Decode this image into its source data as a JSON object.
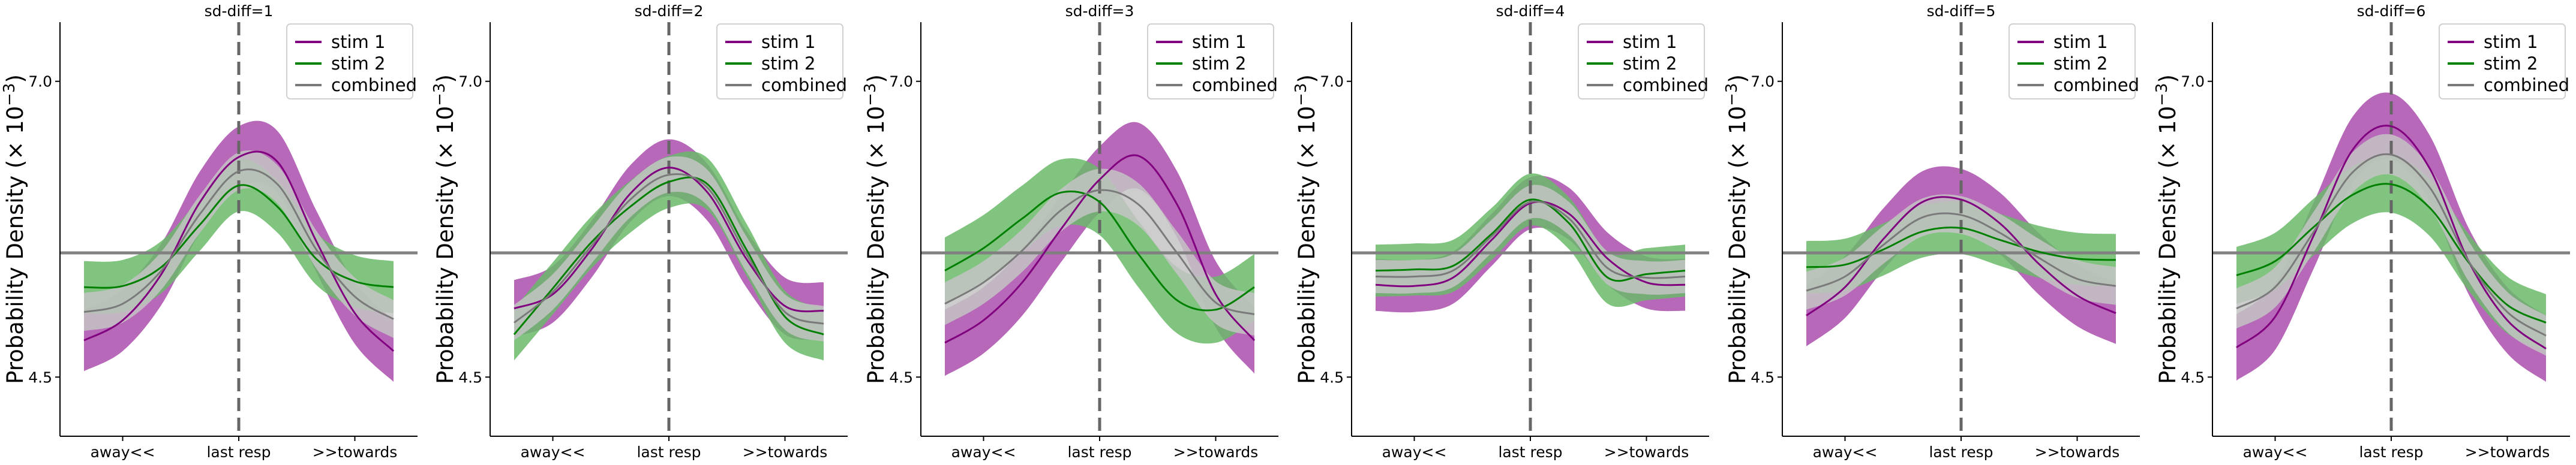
{
  "figure": {
    "ylabel": "Probability Density (× 10",
    "ylabel_exp": "−3",
    "ylabel_close": ")",
    "yticks": [
      4.5,
      7.0
    ],
    "ytick_labels": [
      "4.5",
      "7.0"
    ],
    "ylim": [
      4.0,
      7.5
    ],
    "xticks": [
      "away<<",
      "last resp",
      ">>towards"
    ],
    "uniform_level": 5.55,
    "legend_position": "top-right",
    "colors": {
      "stim1": "#800080",
      "stim1_band": "#b460b4",
      "stim2": "#008000",
      "stim2_band": "#6aba6a",
      "combined": "#7a7a7a",
      "combined_band": "#c4c4c4",
      "reference_line": "#808080"
    }
  },
  "chart_data": [
    {
      "type": "line",
      "title": "sd-diff=1",
      "x": [
        0,
        1,
        2,
        3,
        4,
        5,
        6,
        7,
        8
      ],
      "series": [
        {
          "name": "stim 1",
          "values": [
            4.81,
            4.98,
            5.37,
            5.98,
            6.36,
            6.32,
            5.65,
            5.04,
            4.72
          ],
          "band": 0.26
        },
        {
          "name": "stim 2",
          "values": [
            5.26,
            5.27,
            5.43,
            5.79,
            6.12,
            5.94,
            5.5,
            5.31,
            5.26
          ],
          "band": 0.22
        },
        {
          "name": "combined",
          "values": [
            5.05,
            5.12,
            5.4,
            5.88,
            6.24,
            6.13,
            5.58,
            5.18,
            4.99
          ],
          "band": 0.16
        }
      ]
    },
    {
      "type": "line",
      "title": "sd-diff=2",
      "x": [
        0,
        1,
        2,
        3,
        4,
        5,
        6,
        7,
        8
      ],
      "series": [
        {
          "name": "stim 1",
          "values": [
            5.08,
            5.2,
            5.58,
            6.05,
            6.27,
            6.06,
            5.5,
            5.1,
            5.06
          ],
          "band": 0.24
        },
        {
          "name": "stim 2",
          "values": [
            4.86,
            5.25,
            5.64,
            5.94,
            6.15,
            6.13,
            5.58,
            5.01,
            4.86
          ],
          "band": 0.22
        },
        {
          "name": "combined",
          "values": [
            4.96,
            5.22,
            5.61,
            6.0,
            6.21,
            6.1,
            5.54,
            5.05,
            4.95
          ],
          "band": 0.15
        }
      ]
    },
    {
      "type": "line",
      "title": "sd-diff=3",
      "x": [
        0,
        1,
        2,
        3,
        4,
        5,
        6,
        7,
        8
      ],
      "series": [
        {
          "name": "stim 1",
          "values": [
            4.79,
            4.98,
            5.3,
            5.75,
            6.17,
            6.37,
            5.96,
            5.2,
            4.81
          ],
          "band": 0.28
        },
        {
          "name": "stim 2",
          "values": [
            5.4,
            5.59,
            5.84,
            6.06,
            5.98,
            5.54,
            5.15,
            5.07,
            5.26
          ],
          "band": 0.28
        },
        {
          "name": "combined",
          "values": [
            5.12,
            5.3,
            5.57,
            5.91,
            6.08,
            5.96,
            5.55,
            5.13,
            5.03
          ],
          "band": 0.18
        }
      ]
    },
    {
      "type": "line",
      "title": "sd-diff=4",
      "x": [
        0,
        1,
        2,
        3,
        4,
        5,
        6,
        7,
        8
      ],
      "series": [
        {
          "name": "stim 1",
          "values": [
            5.28,
            5.27,
            5.34,
            5.66,
            5.97,
            5.88,
            5.5,
            5.3,
            5.28
          ],
          "band": 0.22
        },
        {
          "name": "stim 2",
          "values": [
            5.4,
            5.41,
            5.44,
            5.71,
            6.0,
            5.8,
            5.34,
            5.37,
            5.4
          ],
          "band": 0.22
        },
        {
          "name": "combined",
          "values": [
            5.35,
            5.35,
            5.4,
            5.69,
            5.98,
            5.84,
            5.42,
            5.34,
            5.35
          ],
          "band": 0.14
        }
      ]
    },
    {
      "type": "line",
      "title": "sd-diff=5",
      "x": [
        0,
        1,
        2,
        3,
        4,
        5,
        6,
        7,
        8
      ],
      "series": [
        {
          "name": "stim 1",
          "values": [
            5.02,
            5.26,
            5.67,
            5.98,
            6.0,
            5.8,
            5.46,
            5.19,
            5.04
          ],
          "band": 0.26
        },
        {
          "name": "stim 2",
          "values": [
            5.43,
            5.45,
            5.58,
            5.73,
            5.76,
            5.66,
            5.56,
            5.5,
            5.49
          ],
          "band": 0.22
        },
        {
          "name": "combined",
          "values": [
            5.23,
            5.35,
            5.62,
            5.85,
            5.87,
            5.72,
            5.51,
            5.33,
            5.27
          ],
          "band": 0.16
        }
      ]
    },
    {
      "type": "line",
      "title": "sd-diff=6",
      "x": [
        0,
        1,
        2,
        3,
        4,
        5,
        6,
        7,
        8
      ],
      "series": [
        {
          "name": "stim 1",
          "values": [
            4.75,
            5.01,
            5.7,
            6.42,
            6.62,
            6.26,
            5.48,
            4.98,
            4.74
          ],
          "band": 0.28
        },
        {
          "name": "stim 2",
          "values": [
            5.36,
            5.48,
            5.77,
            6.04,
            6.13,
            5.93,
            5.47,
            5.11,
            4.96
          ],
          "band": 0.24
        },
        {
          "name": "combined",
          "values": [
            5.08,
            5.26,
            5.73,
            6.23,
            6.38,
            6.1,
            5.48,
            5.05,
            4.85
          ],
          "band": 0.17
        }
      ]
    }
  ]
}
